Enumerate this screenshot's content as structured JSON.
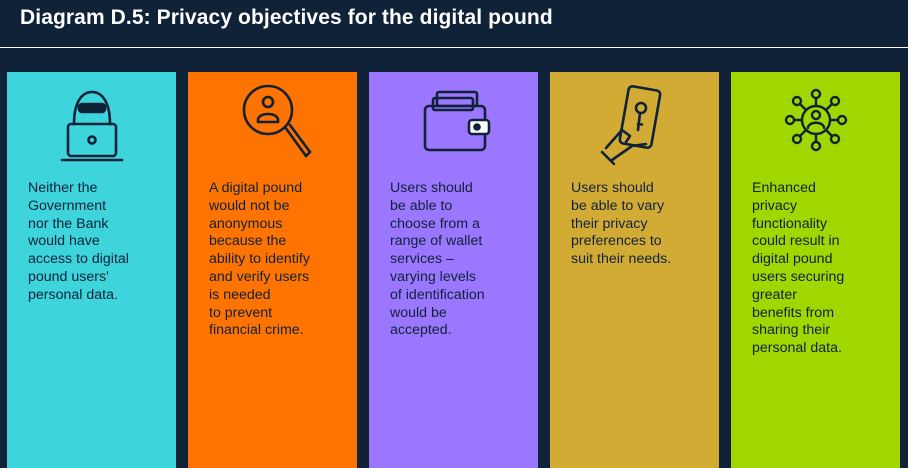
{
  "title": "Diagram D.5: Privacy objectives for the digital pound",
  "cards": [
    {
      "color": "#3dd4db",
      "icon": "hacker-laptop-icon",
      "text": "Neither the\nGovernment\nnor the Bank\nwould have\naccess to digital\npound users'\npersonal data."
    },
    {
      "color": "#ff7300",
      "icon": "magnify-user-icon",
      "text": "A digital pound\nwould not be\nanonymous\nbecause the\nability to identify\nand verify users\nis needed\nto prevent\nfinancial crime."
    },
    {
      "color": "#9b77ff",
      "icon": "wallet-icon",
      "text": "Users should\nbe able to\nchoose from a\nrange of wallet\nservices –\nvarying levels\nof identification\nwould be\naccepted."
    },
    {
      "color": "#d2ab35",
      "icon": "phone-key-icon",
      "text": "Users should\nbe able to vary\ntheir privacy\npreferences to\nsuit their needs."
    },
    {
      "color": "#a2d600",
      "icon": "user-network-icon",
      "text": "Enhanced\nprivacy\nfunctionality\ncould result in\ndigital pound\nusers securing\ngreater\nbenefits from\nsharing their\npersonal data."
    }
  ]
}
